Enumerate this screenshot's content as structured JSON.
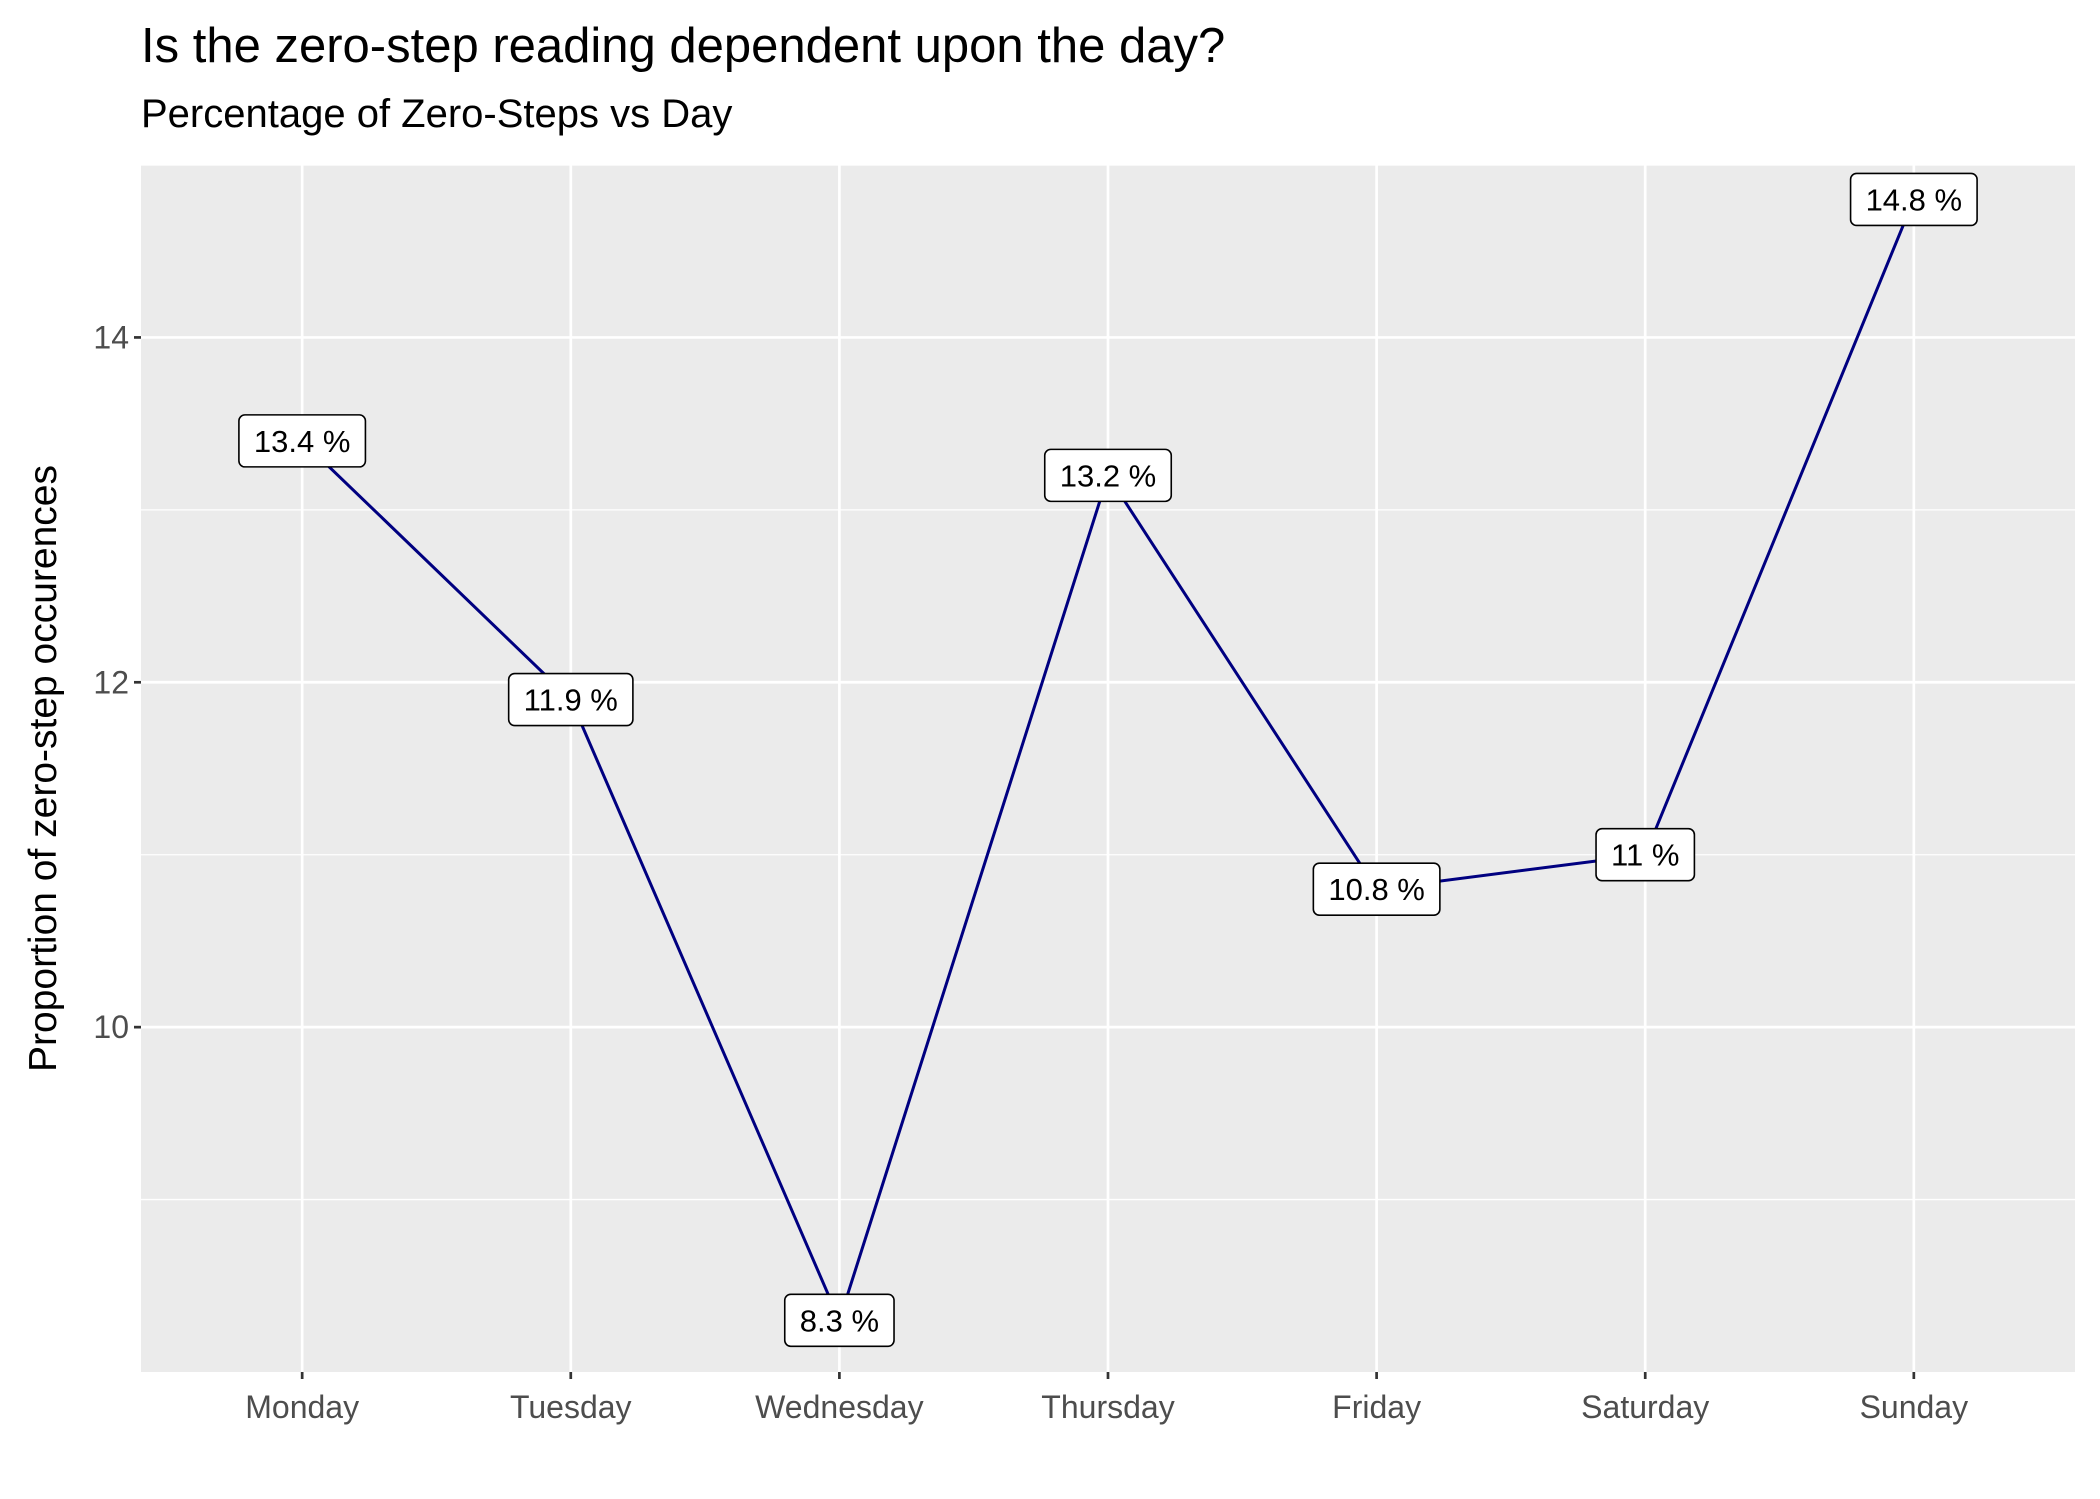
{
  "chart_data": {
    "type": "line",
    "title": "Is the zero-step reading dependent upon the day?",
    "subtitle": "Percentage of Zero-Steps vs Day",
    "xlabel": "",
    "ylabel": "Proportion of zero-step occurences",
    "categories": [
      "Monday",
      "Tuesday",
      "Wednesday",
      "Thursday",
      "Friday",
      "Saturday",
      "Sunday"
    ],
    "values": [
      13.4,
      11.9,
      8.3,
      13.2,
      10.8,
      11,
      14.8
    ],
    "data_labels": [
      "13.4 %",
      "11.9 %",
      "8.3 %",
      "13.2 %",
      "10.8 %",
      "11 %",
      "14.8 %"
    ],
    "y_ticks": [
      10,
      12,
      14
    ],
    "y_tick_labels": [
      "10",
      "12",
      "14"
    ],
    "ylim": [
      8.0,
      15.0
    ],
    "grid": true,
    "legend": "none",
    "colors": {
      "line": "#000080",
      "panel_background": "#ebebeb",
      "grid": "#ffffff",
      "label_fill": "#ffffff",
      "label_border": "#000000",
      "tick_text": "#4d4d4d"
    }
  }
}
